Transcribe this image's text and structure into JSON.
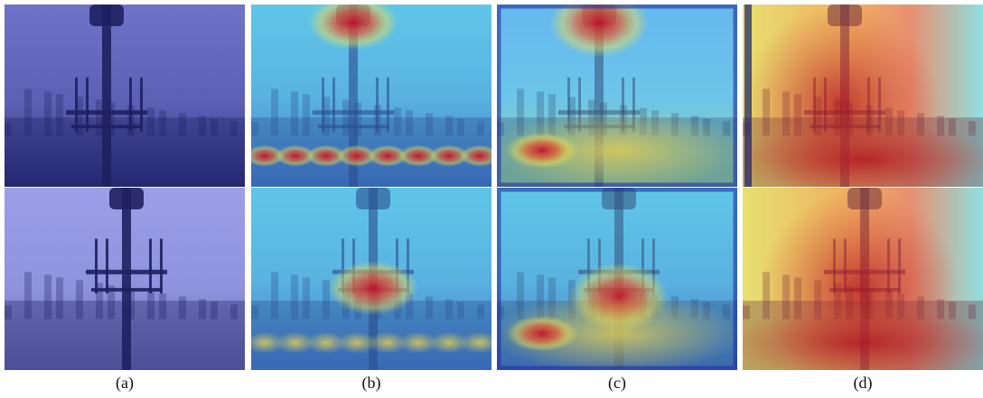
{
  "captions": [
    "(a)",
    "(b)",
    "(c)",
    "(d)"
  ]
}
